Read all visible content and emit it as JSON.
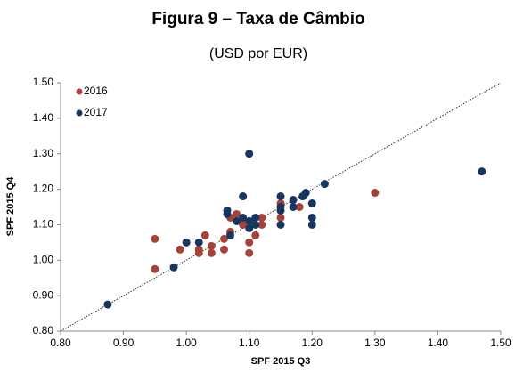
{
  "chart_data": {
    "type": "scatter",
    "title": "Figura 9 – Taxa de Câmbio",
    "subtitle": "(USD por EUR)",
    "x_label": "SPF 2015 Q3",
    "y_label": "SPF 2015 Q4",
    "xlim": [
      0.8,
      1.5
    ],
    "ylim": [
      0.8,
      1.5
    ],
    "xticks": [
      {
        "value": 0.8,
        "label": "0.80"
      },
      {
        "value": 0.9,
        "label": "0.90"
      },
      {
        "value": 1.0,
        "label": "1.00"
      },
      {
        "value": 1.1,
        "label": "1.10"
      },
      {
        "value": 1.2,
        "label": "1.20"
      },
      {
        "value": 1.3,
        "label": "1.30"
      },
      {
        "value": 1.4,
        "label": "1.40"
      },
      {
        "value": 1.5,
        "label": "1.50"
      }
    ],
    "yticks": [
      {
        "value": 0.8,
        "label": "0.80"
      },
      {
        "value": 0.9,
        "label": "0.90"
      },
      {
        "value": 1.0,
        "label": "1.00"
      },
      {
        "value": 1.1,
        "label": "1.10"
      },
      {
        "value": 1.2,
        "label": "1.20"
      },
      {
        "value": 1.3,
        "label": "1.30"
      },
      {
        "value": 1.4,
        "label": "1.40"
      },
      {
        "value": 1.5,
        "label": "1.50"
      }
    ],
    "grid": false,
    "legend": "top-left",
    "series": [
      {
        "name": "2016",
        "color": "#a5433a",
        "x": [
          0.95,
          0.95,
          0.99,
          1.02,
          1.02,
          1.03,
          1.04,
          1.04,
          1.06,
          1.06,
          1.07,
          1.07,
          1.08,
          1.09,
          1.1,
          1.1,
          1.1,
          1.11,
          1.12,
          1.12,
          1.15,
          1.15,
          1.18,
          1.3
        ],
        "values": [
          0.975,
          1.06,
          1.03,
          1.02,
          1.03,
          1.07,
          1.02,
          1.04,
          1.03,
          1.06,
          1.08,
          1.12,
          1.13,
          1.1,
          1.02,
          1.05,
          1.11,
          1.07,
          1.1,
          1.12,
          1.12,
          1.16,
          1.15,
          1.19
        ]
      },
      {
        "name": "2017",
        "color": "#17375e",
        "x": [
          0.875,
          0.98,
          1.0,
          1.02,
          1.065,
          1.065,
          1.07,
          1.08,
          1.09,
          1.09,
          1.1,
          1.1,
          1.1,
          1.11,
          1.11,
          1.15,
          1.15,
          1.15,
          1.15,
          1.17,
          1.17,
          1.185,
          1.19,
          1.2,
          1.2,
          1.2,
          1.22,
          1.47
        ],
        "values": [
          0.875,
          0.98,
          1.05,
          1.05,
          1.14,
          1.13,
          1.07,
          1.11,
          1.18,
          1.12,
          1.3,
          1.09,
          1.11,
          1.1,
          1.12,
          1.1,
          1.14,
          1.15,
          1.18,
          1.15,
          1.17,
          1.18,
          1.19,
          1.1,
          1.12,
          1.16,
          1.215,
          1.25
        ]
      }
    ]
  }
}
